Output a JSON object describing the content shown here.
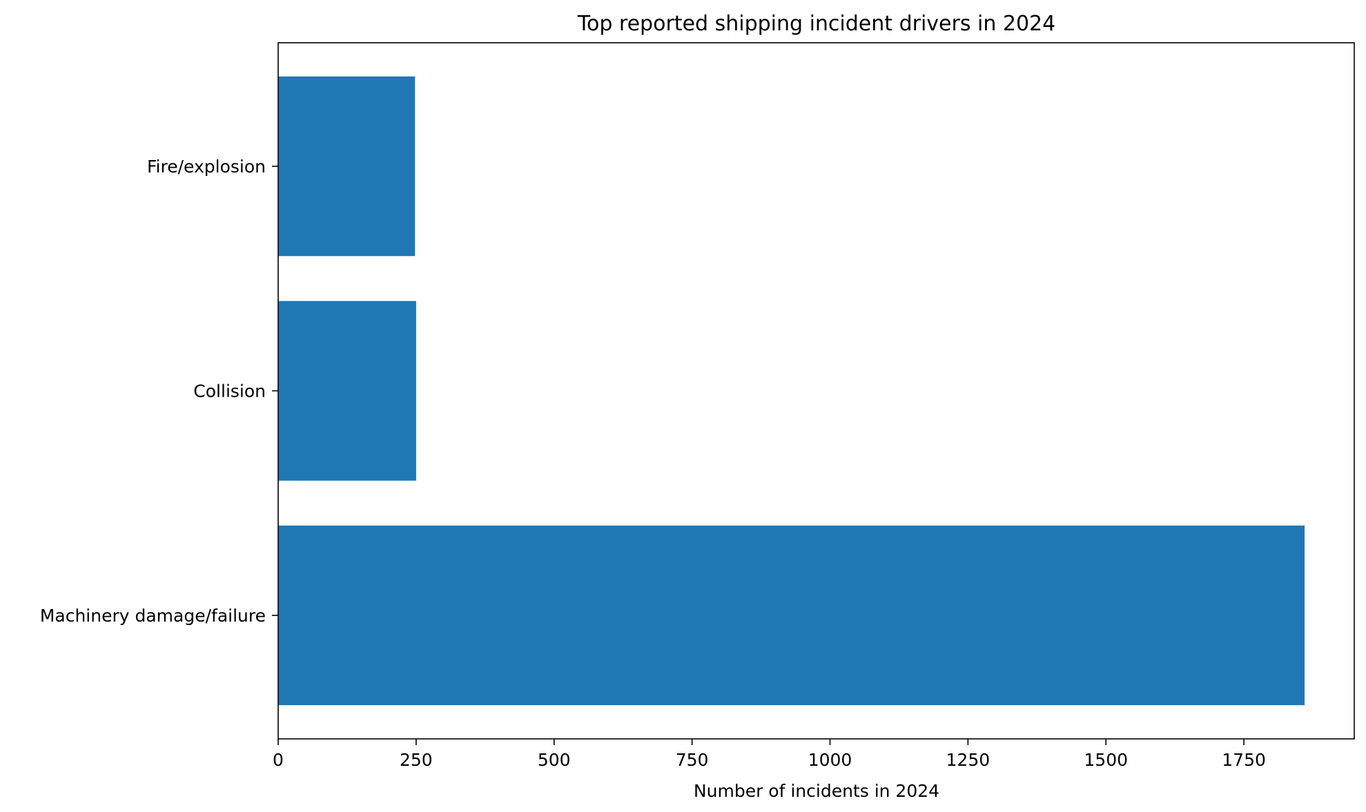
{
  "chart_data": {
    "type": "bar",
    "orientation": "horizontal",
    "title": "Top reported shipping incident drivers in 2024",
    "xlabel": "Number of incidents in 2024",
    "ylabel": "",
    "categories": [
      "Machinery damage/failure",
      "Collision",
      "Fire/explosion"
    ],
    "values": [
      1860,
      250,
      248
    ],
    "xlim": [
      0,
      1950
    ],
    "xticks": [
      0,
      250,
      500,
      750,
      1000,
      1250,
      1500,
      1750
    ],
    "grid": false,
    "legend": "none",
    "bar_color": "#1f77b4"
  }
}
